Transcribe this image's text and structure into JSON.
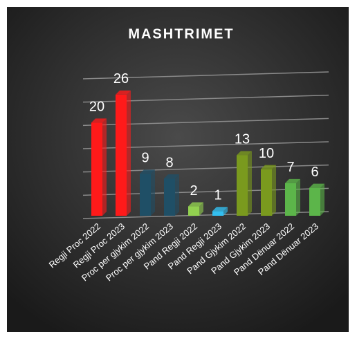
{
  "chart_data": {
    "type": "bar",
    "title": "MASHTRIMET",
    "categories": [
      "Regji Proc 2022",
      "Regji Proc 2023",
      "Proc per gjykim 2022",
      "Proc per gjykim 2023",
      "Pand Regji 2022",
      "Pand Regji 2023",
      "Pand Gjykim 2022",
      "Pand Gjykim 2023",
      "Pand Dënuar 2022",
      "Pand Dënuar 2023"
    ],
    "values": [
      20,
      26,
      9,
      8,
      2,
      1,
      13,
      10,
      7,
      6
    ],
    "colors": [
      "#ff1a1a",
      "#ff1a1a",
      "#1f4f66",
      "#1f4f66",
      "#92d050",
      "#33bff0",
      "#7a9a1e",
      "#7a9a1e",
      "#5cb54a",
      "#5cb54a"
    ],
    "ylim": [
      0,
      30
    ],
    "yticks": [
      0,
      5,
      10,
      15,
      20,
      25,
      30
    ],
    "grid": true
  }
}
